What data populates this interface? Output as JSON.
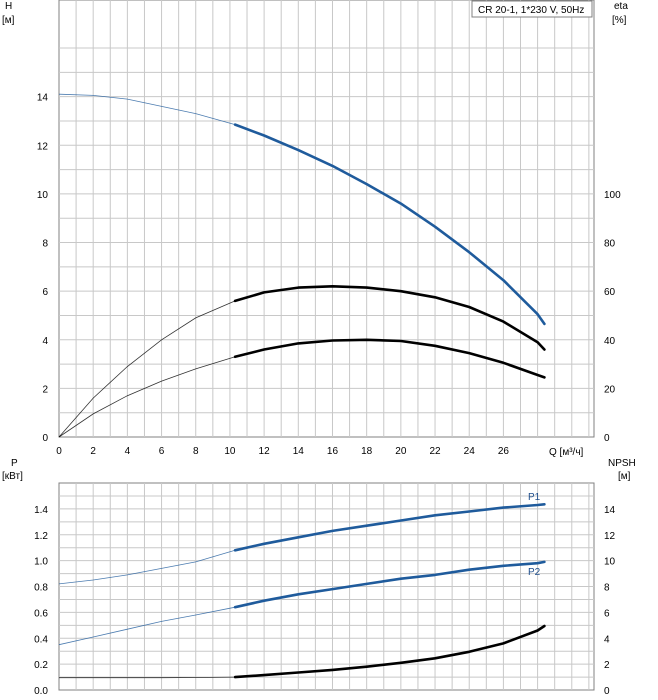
{
  "title": "CR 20-1, 1*230 V, 50Hz",
  "colors": {
    "blue": "#1f5b9c",
    "black": "#000000",
    "grid": "#c8c8c8"
  },
  "chart_data": [
    {
      "type": "line",
      "name": "upper",
      "xlabel": "Q [м³/ч]",
      "ylabel_left": [
        "H",
        "[м]"
      ],
      "ylabel_right": [
        "eta",
        "[%]"
      ],
      "x_ticks": [
        0,
        2,
        4,
        6,
        8,
        10,
        12,
        14,
        16,
        18,
        20,
        22,
        24,
        26
      ],
      "xlim": [
        0,
        31.3
      ],
      "left_ticks": [
        0,
        2,
        4,
        6,
        8,
        10,
        12,
        14
      ],
      "left_ylim": [
        0,
        16
      ],
      "right_ticks": [
        0,
        20,
        40,
        60,
        80,
        100
      ],
      "right_ylim": [
        0,
        100
      ],
      "grid": true,
      "series": [
        {
          "key": "H",
          "axis": "left",
          "color": "#1f5b9c",
          "x": [
            0,
            2,
            4,
            6,
            8,
            10.3,
            12,
            14,
            16,
            18,
            20,
            22,
            24,
            26,
            28,
            28.4
          ],
          "y": [
            14.1,
            14.05,
            13.9,
            13.6,
            13.3,
            12.85,
            12.4,
            11.8,
            11.15,
            10.4,
            9.6,
            8.65,
            7.6,
            6.45,
            5.05,
            4.65
          ]
        },
        {
          "key": "eta",
          "axis": "right",
          "color": "#000000",
          "x": [
            0,
            2,
            4,
            6,
            8,
            10.3,
            12,
            14,
            16,
            18,
            20,
            22,
            24,
            26,
            28,
            28.4
          ],
          "y": [
            0,
            16,
            29,
            40,
            49,
            56,
            59.5,
            61.5,
            62,
            61.5,
            60,
            57.5,
            53.5,
            47.5,
            39,
            36
          ]
        },
        {
          "key": "eta2",
          "axis": "left",
          "color": "#000000",
          "x": [
            0,
            2,
            4,
            6,
            8,
            10.3,
            12,
            14,
            16,
            18,
            20,
            22,
            24,
            26,
            28,
            28.4
          ],
          "y": [
            0,
            0.95,
            1.7,
            2.3,
            2.8,
            3.3,
            3.6,
            3.85,
            3.97,
            4.0,
            3.95,
            3.75,
            3.45,
            3.05,
            2.55,
            2.45
          ]
        }
      ],
      "duty_start_x": 10.3
    },
    {
      "type": "line",
      "name": "lower",
      "ylabel_left": [
        "P",
        "[кВт]"
      ],
      "ylabel_right": [
        "NPSH",
        "[м]"
      ],
      "left_ticks": [
        "0.0",
        "0.2",
        "0.4",
        "0.6",
        "0.8",
        "1.0",
        "1.2",
        "1.4"
      ],
      "left_ylim": [
        0,
        1.6
      ],
      "right_ticks": [
        0,
        2,
        4,
        6,
        8,
        10,
        12,
        14
      ],
      "right_ylim": [
        0,
        16
      ],
      "grid": true,
      "series": [
        {
          "key": "P1",
          "label": "P1",
          "axis": "left",
          "color": "#1f5b9c",
          "x": [
            0,
            2,
            4,
            6,
            8,
            10.3,
            12,
            14,
            16,
            18,
            20,
            22,
            24,
            26,
            28,
            28.4
          ],
          "y": [
            0.82,
            0.85,
            0.89,
            0.94,
            0.99,
            1.08,
            1.13,
            1.18,
            1.23,
            1.27,
            1.31,
            1.35,
            1.38,
            1.41,
            1.43,
            1.435
          ]
        },
        {
          "key": "P2",
          "label": "P2",
          "axis": "left",
          "color": "#1f5b9c",
          "x": [
            0,
            2,
            4,
            6,
            8,
            10.3,
            12,
            14,
            16,
            18,
            20,
            22,
            24,
            26,
            28,
            28.4
          ],
          "y": [
            0.35,
            0.41,
            0.47,
            0.53,
            0.58,
            0.64,
            0.69,
            0.74,
            0.78,
            0.82,
            0.86,
            0.89,
            0.93,
            0.96,
            0.98,
            0.99
          ]
        },
        {
          "key": "NPSH",
          "axis": "right",
          "color": "#000000",
          "x": [
            0,
            2,
            4,
            6,
            8,
            10.3,
            12,
            14,
            16,
            18,
            20,
            22,
            24,
            26,
            28,
            28.4
          ],
          "y": [
            0.95,
            0.95,
            0.95,
            0.95,
            0.97,
            1.0,
            1.15,
            1.35,
            1.55,
            1.8,
            2.1,
            2.45,
            2.95,
            3.6,
            4.6,
            4.95
          ]
        }
      ],
      "duty_start_x": 10.3
    }
  ]
}
